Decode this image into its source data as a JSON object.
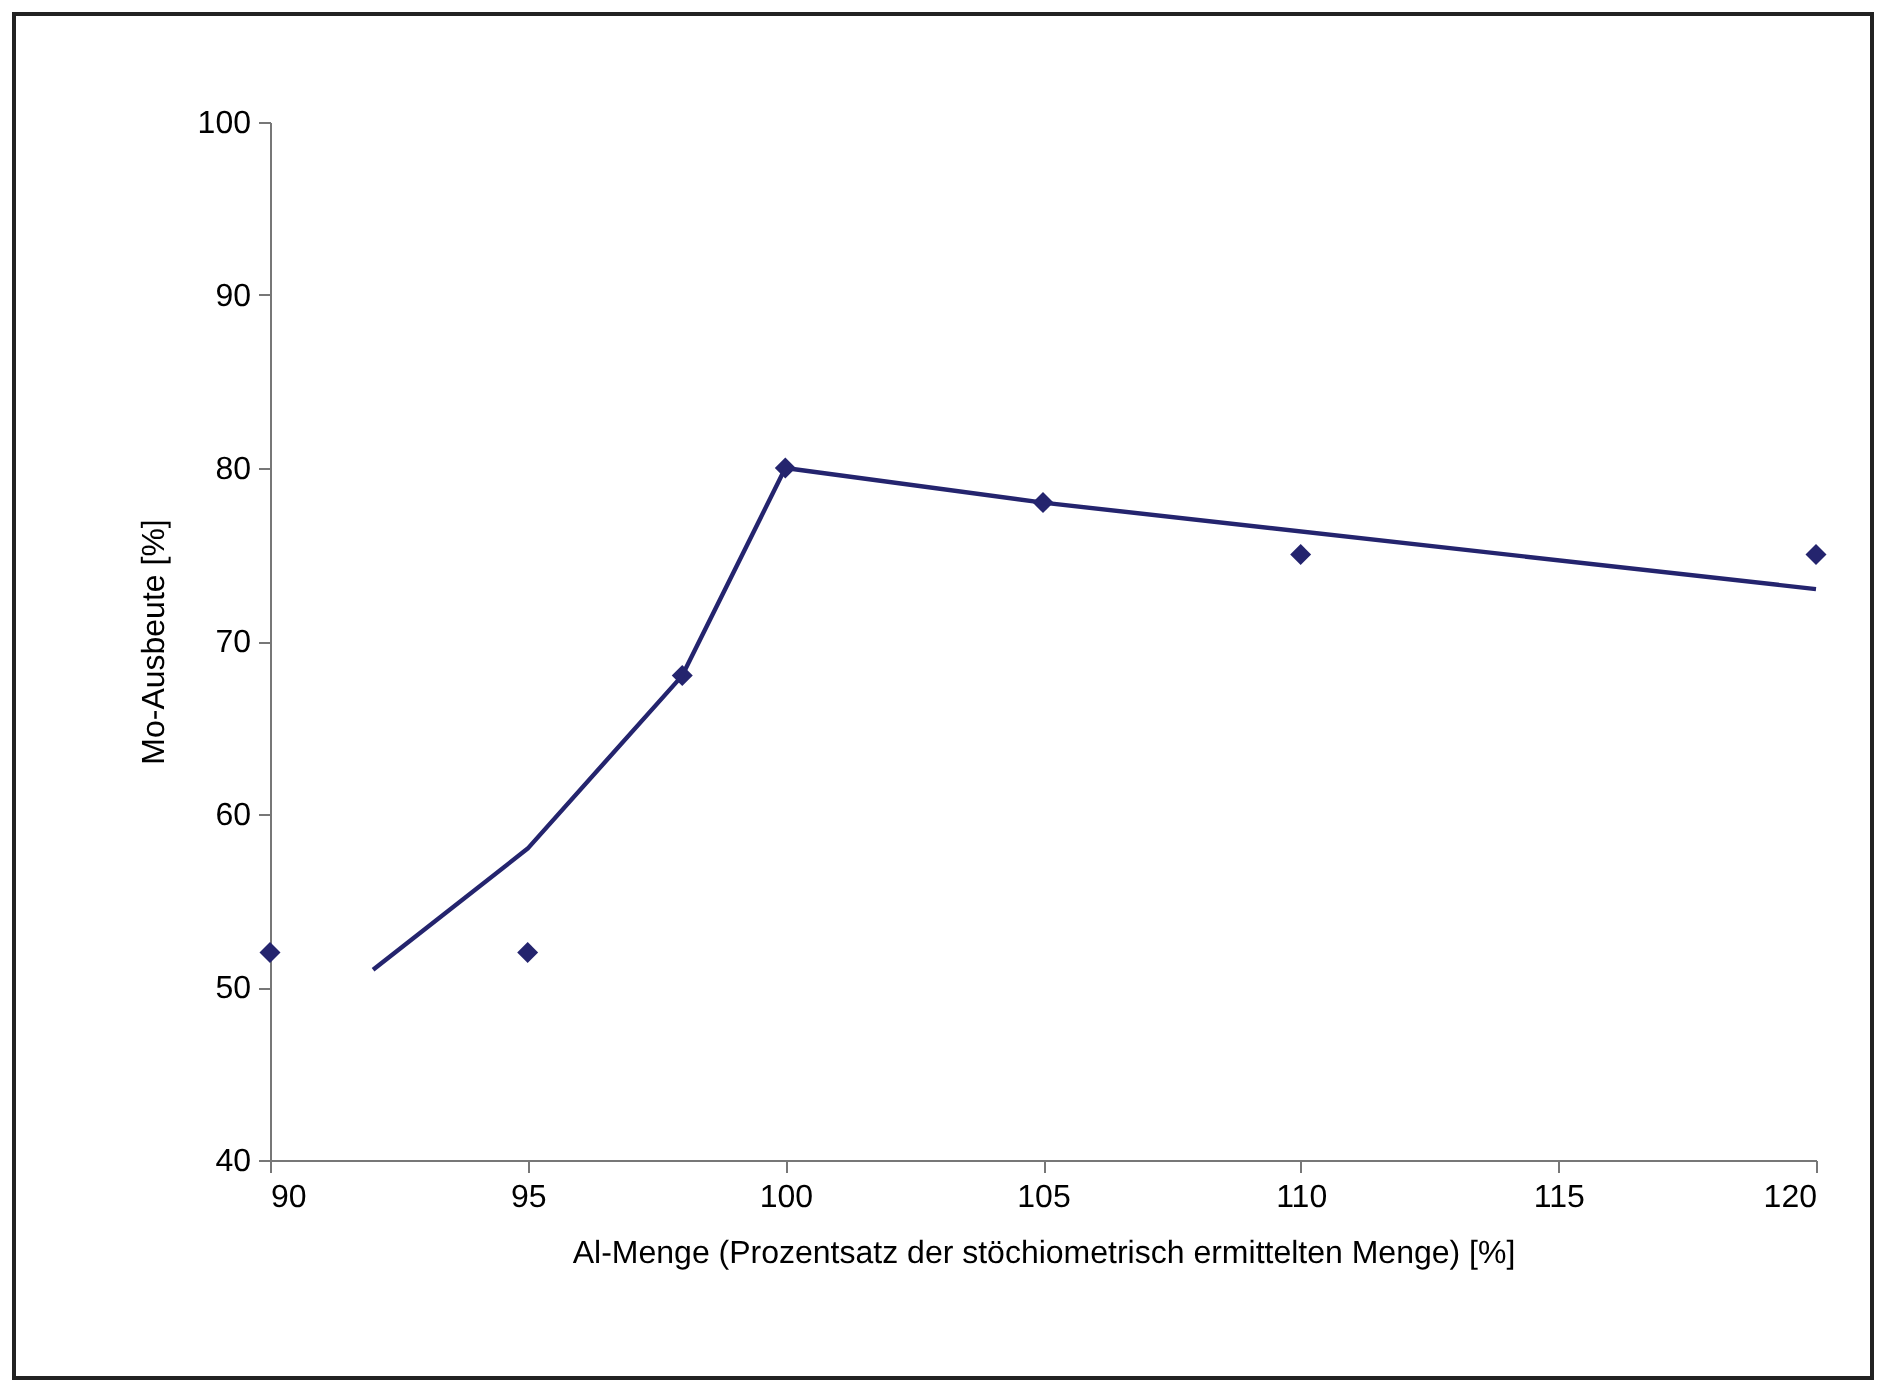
{
  "chart_data": {
    "type": "scatter",
    "xlabel": "Al-Menge (Prozentsatz der stöchiometrisch ermittelten Menge) [%]",
    "ylabel": "Mo-Ausbeute [%]",
    "xlim": [
      90,
      120
    ],
    "xticks": [
      90,
      95,
      100,
      105,
      110,
      115,
      120
    ],
    "ylim": [
      40,
      100
    ],
    "yticks": [
      40,
      50,
      60,
      70,
      80,
      90,
      100
    ],
    "grid": false,
    "series": [
      {
        "color": "#24246e",
        "marker": "diamond",
        "x": [
          90,
          95,
          98,
          100,
          105,
          110,
          120
        ],
        "values": [
          52,
          52,
          68,
          80,
          78,
          75,
          75
        ]
      },
      {
        "type": "line",
        "color": "#24246e",
        "line_style": "solid",
        "x": [
          92,
          95,
          98,
          100,
          105,
          120
        ],
        "values": [
          51,
          58,
          68,
          80,
          78,
          73
        ]
      }
    ]
  }
}
